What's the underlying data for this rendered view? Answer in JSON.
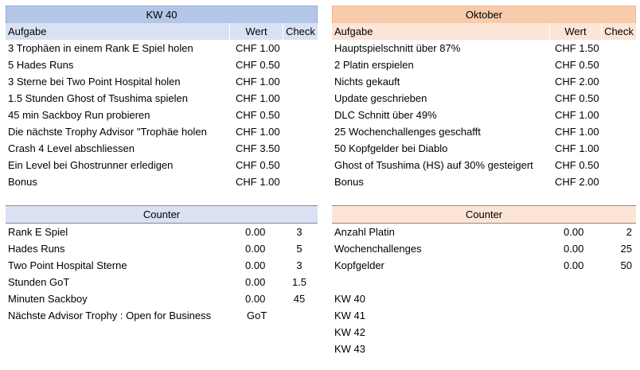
{
  "left_week": {
    "title": "KW 40",
    "headers": {
      "task": "Aufgabe",
      "value": "Wert",
      "check": "Check"
    },
    "rows": [
      {
        "task": "3 Trophäen in einem Rank E Spiel holen",
        "value": "CHF 1.00"
      },
      {
        "task": "5 Hades Runs",
        "value": "CHF 0.50"
      },
      {
        "task": "3 Sterne bei Two Point Hospital holen",
        "value": "CHF 1.00"
      },
      {
        "task": "1.5 Stunden Ghost of Tsushima spielen",
        "value": "CHF 1.00"
      },
      {
        "task": "45 min Sackboy Run probieren",
        "value": "CHF 0.50"
      },
      {
        "task": "Die nächste Trophy Advisor \"Trophäe holen",
        "value": "CHF 1.00"
      },
      {
        "task": "Crash 4 Level abschliessen",
        "value": "CHF 3.50"
      },
      {
        "task": "Ein Level bei Ghostrunner erledigen",
        "value": "CHF 0.50"
      },
      {
        "task": "Bonus",
        "value": "CHF 1.00"
      }
    ]
  },
  "right_month": {
    "title": "Oktober",
    "headers": {
      "task": "Aufgabe",
      "value": "Wert",
      "check": "Check"
    },
    "rows": [
      {
        "task": "Hauptspielschnitt über 87%",
        "value": "CHF 1.50"
      },
      {
        "task": "2 Platin erspielen",
        "value": "CHF 0.50"
      },
      {
        "task": "Nichts gekauft",
        "value": "CHF 2.00"
      },
      {
        "task": "Update geschrieben",
        "value": "CHF 0.50"
      },
      {
        "task": "DLC Schnitt über 49%",
        "value": "CHF 1.00"
      },
      {
        "task": "25 Wochenchallenges geschafft",
        "value": "CHF 1.00"
      },
      {
        "task": "50 Kopfgelder bei Diablo",
        "value": "CHF 1.00"
      },
      {
        "task": "Ghost of Tsushima (HS) auf 30% gesteigert",
        "value": "CHF 0.50"
      },
      {
        "task": "Bonus",
        "value": "CHF 2.00"
      }
    ]
  },
  "left_counter": {
    "title": "Counter",
    "rows": [
      {
        "label": "Rank E Spiel",
        "current": "0.00",
        "target": "3"
      },
      {
        "label": "Hades Runs",
        "current": "0.00",
        "target": "5"
      },
      {
        "label": "Two Point Hospital Sterne",
        "current": "0.00",
        "target": "3"
      },
      {
        "label": "Stunden GoT",
        "current": "0.00",
        "target": "1.5"
      },
      {
        "label": "Minuten Sackboy",
        "current": "0.00",
        "target": "45"
      },
      {
        "label": "Nächste Advisor Trophy : Open for Business",
        "current": "GoT",
        "target": ""
      }
    ]
  },
  "right_counter": {
    "title": "Counter",
    "rows": [
      {
        "label": "Anzahl Platin",
        "current": "0.00",
        "target": "2"
      },
      {
        "label": "Wochenchallenges",
        "current": "0.00",
        "target": "25"
      },
      {
        "label": "Kopfgelder",
        "current": "0.00",
        "target": "50"
      }
    ]
  },
  "weeks": [
    "KW 40",
    "KW 41",
    "KW 42",
    "KW 43"
  ]
}
